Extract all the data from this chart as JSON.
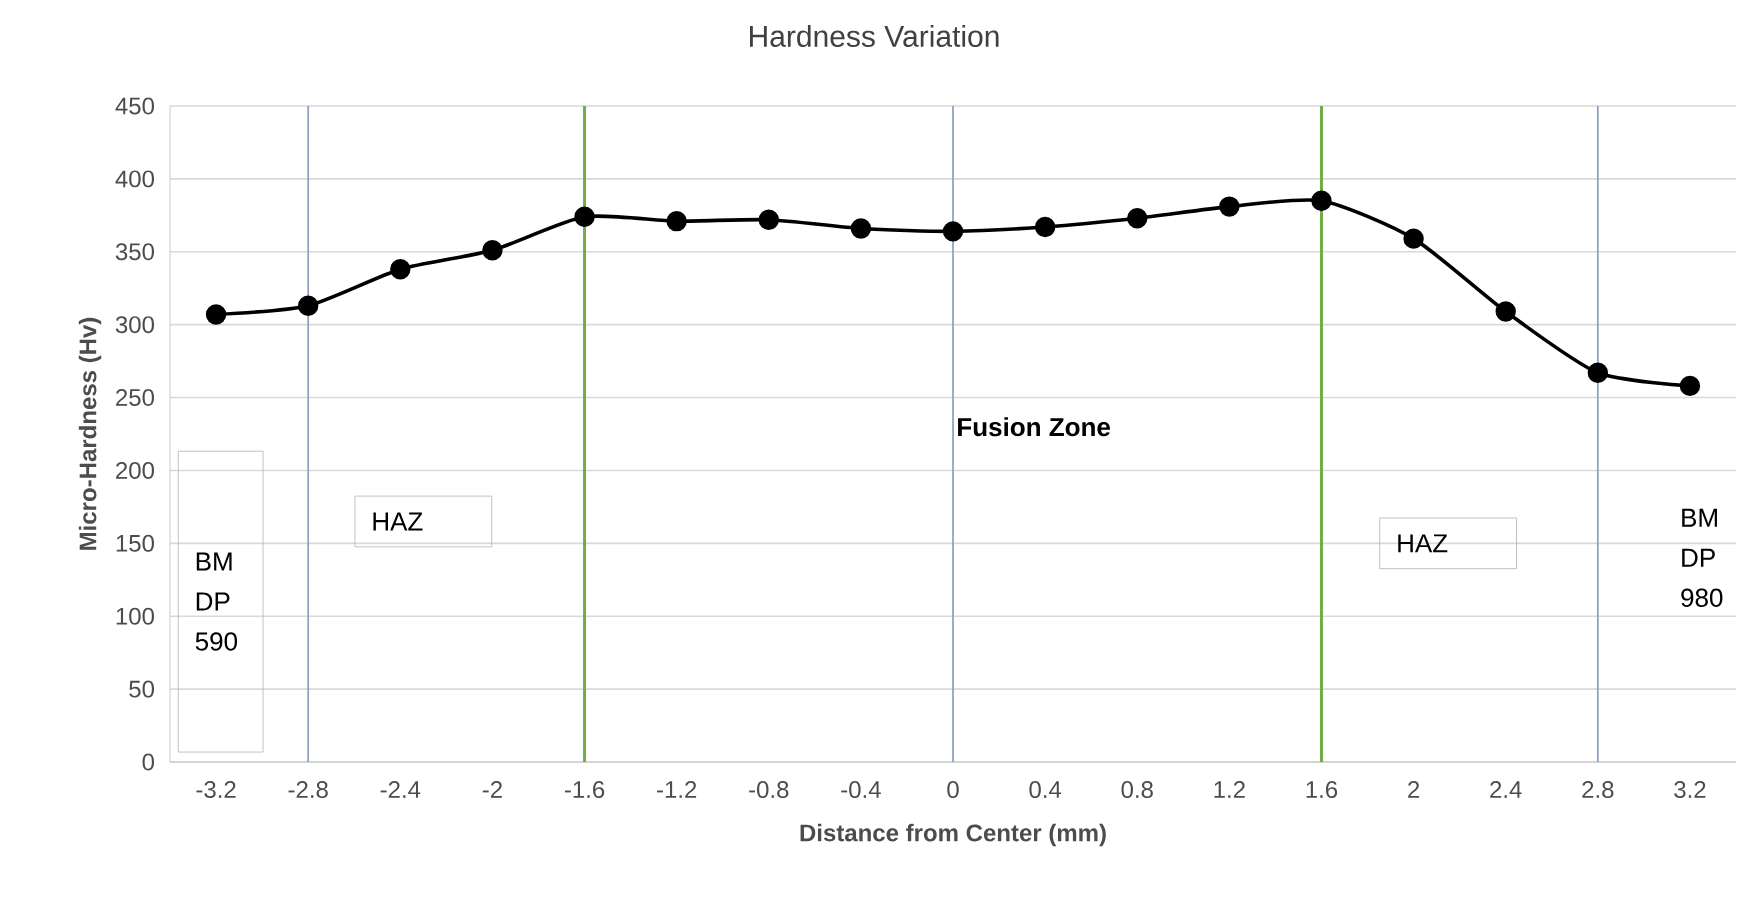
{
  "chart_data": {
    "type": "line",
    "title": "Hardness Variation",
    "xlabel": "Distance from Center (mm)",
    "ylabel": "Micro-Hardness  (Hv)",
    "x": [
      -3.2,
      -2.8,
      -2.4,
      -2,
      -1.6,
      -1.2,
      -0.8,
      -0.4,
      0,
      0.4,
      0.8,
      1.2,
      1.6,
      2,
      2.4,
      2.8,
      3.2
    ],
    "series": [
      {
        "color": "#000000",
        "values": [
          307,
          313,
          338,
          351,
          374,
          371,
          372,
          366,
          364,
          367,
          373,
          381,
          385,
          359,
          309,
          267,
          258
        ]
      }
    ],
    "xlim": [
      -3.4,
      3.4
    ],
    "ylim": [
      0,
      450
    ],
    "xticks": [
      -3.2,
      -2.8,
      -2.4,
      -2,
      -1.6,
      -1.2,
      -0.8,
      -0.4,
      0,
      0.4,
      0.8,
      1.2,
      1.6,
      2,
      2.4,
      2.8,
      3.2
    ],
    "yticks": [
      0,
      50,
      100,
      150,
      200,
      250,
      300,
      350,
      400,
      450
    ],
    "grid": "y",
    "marker": "circle",
    "line_style": "solid",
    "ref_lines": [
      {
        "axis": "x",
        "value": -2.8,
        "color": "#8ea3c4"
      },
      {
        "axis": "x",
        "value": -1.6,
        "color": "#70ad47"
      },
      {
        "axis": "x",
        "value": 0,
        "color": "#8ea3c4"
      },
      {
        "axis": "x",
        "value": 1.6,
        "color": "#70ad47"
      },
      {
        "axis": "x",
        "value": 2.8,
        "color": "#8ea3c4"
      }
    ],
    "annotations": [
      "Fusion Zone",
      "HAZ",
      "HAZ",
      "BM DP 590",
      "BM DP 980"
    ]
  }
}
